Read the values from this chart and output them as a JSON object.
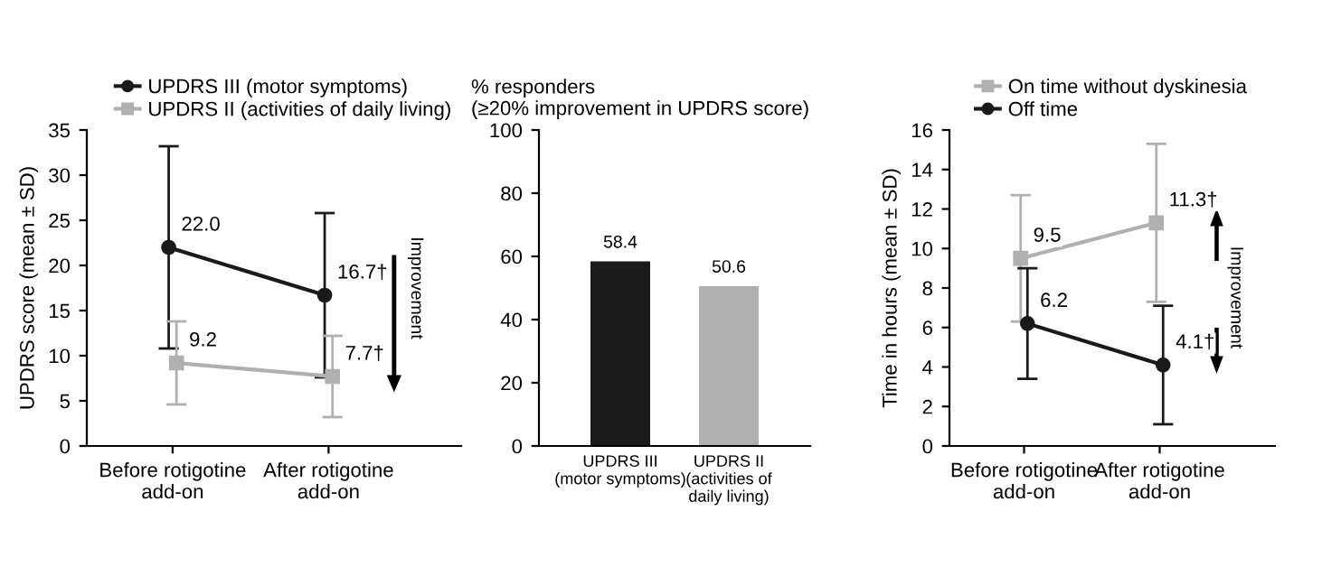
{
  "chart_data": [
    {
      "type": "line",
      "ylabel": "UPDRS score (mean ± SD)",
      "categories": [
        "Before rotigotine\nadd-on",
        "After rotigotine\nadd-on"
      ],
      "ylim": [
        0,
        35
      ],
      "yticks": [
        0,
        5,
        10,
        15,
        20,
        25,
        30,
        35
      ],
      "legend": "top",
      "grid": false,
      "series": [
        {
          "name": "UPDRS III (motor symptoms)",
          "color": "#1a1a1a",
          "marker": "circle",
          "values": [
            22.0,
            16.7
          ],
          "errors": [
            11.2,
            9.1
          ],
          "value_labels": [
            "22.0",
            "16.7†"
          ]
        },
        {
          "name": "UPDRS II (activities of daily living)",
          "color": "#b0b0b0",
          "marker": "square",
          "values": [
            9.2,
            7.7
          ],
          "errors": [
            4.6,
            4.5
          ],
          "value_labels": [
            "9.2",
            "7.7†"
          ]
        }
      ],
      "annotations": [
        "Improvement"
      ]
    },
    {
      "type": "bar",
      "title": "% responders\n(≥20% improvement in UPDRS score)",
      "categories": [
        "UPDRS III\n(motor symptoms)",
        "UPDRS II\n(activities of\ndaily living)"
      ],
      "values": [
        58.4,
        50.6
      ],
      "colors": [
        "#1a1a1a",
        "#b0b0b0"
      ],
      "ylim": [
        0,
        100
      ],
      "yticks": [
        0,
        20,
        40,
        60,
        80,
        100
      ],
      "data_labels": true,
      "grid": false
    },
    {
      "type": "line",
      "ylabel": "Time in hours (mean ± SD)",
      "categories": [
        "Before rotigotine\nadd-on",
        "After rotigotine\nadd-on"
      ],
      "ylim": [
        0,
        16
      ],
      "yticks": [
        0,
        2,
        4,
        6,
        8,
        10,
        12,
        14,
        16
      ],
      "legend": "top",
      "grid": false,
      "series": [
        {
          "name": "On time without dyskinesia",
          "color": "#b0b0b0",
          "marker": "square",
          "values": [
            9.5,
            11.3
          ],
          "errors": [
            3.2,
            4.0
          ],
          "value_labels": [
            "9.5",
            "11.3†"
          ]
        },
        {
          "name": "Off time",
          "color": "#1a1a1a",
          "marker": "circle",
          "values": [
            6.2,
            4.1
          ],
          "errors": [
            2.8,
            3.0
          ],
          "value_labels": [
            "6.2",
            "4.1†"
          ]
        }
      ],
      "annotations": [
        "Improvement"
      ]
    }
  ]
}
